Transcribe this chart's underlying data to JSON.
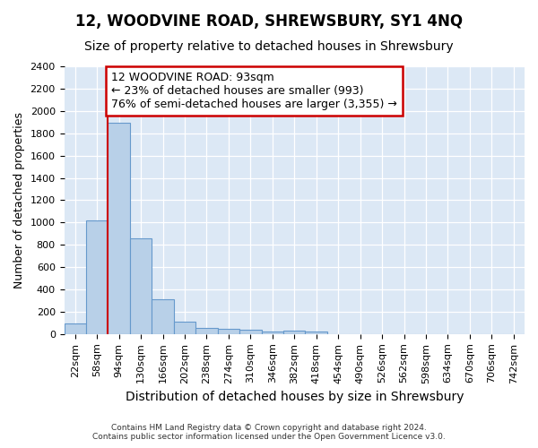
{
  "title": "12, WOODVINE ROAD, SHREWSBURY, SY1 4NQ",
  "subtitle": "Size of property relative to detached houses in Shrewsbury",
  "xlabel": "Distribution of detached houses by size in Shrewsbury",
  "ylabel": "Number of detached properties",
  "footer_line1": "Contains HM Land Registry data © Crown copyright and database right 2024.",
  "footer_line2": "Contains public sector information licensed under the Open Government Licence v3.0.",
  "bar_labels": [
    "22sqm",
    "58sqm",
    "94sqm",
    "130sqm",
    "166sqm",
    "202sqm",
    "238sqm",
    "274sqm",
    "310sqm",
    "346sqm",
    "382sqm",
    "418sqm",
    "454sqm",
    "490sqm",
    "526sqm",
    "562sqm",
    "598sqm",
    "634sqm",
    "670sqm",
    "706sqm",
    "742sqm"
  ],
  "bar_values": [
    93,
    1020,
    1890,
    855,
    315,
    115,
    58,
    48,
    38,
    20,
    30,
    20,
    0,
    0,
    0,
    0,
    0,
    0,
    0,
    0,
    0
  ],
  "bar_color": "#b8d0e8",
  "bar_edge_color": "#6699cc",
  "annotation_text": "12 WOODVINE ROAD: 93sqm\n← 23% of detached houses are smaller (993)\n76% of semi-detached houses are larger (3,355) →",
  "annotation_box_color": "#ffffff",
  "annotation_box_edge_color": "#cc0000",
  "marker_line_color": "#cc0000",
  "marker_bar_index": 2,
  "ylim": [
    0,
    2400
  ],
  "yticks": [
    0,
    200,
    400,
    600,
    800,
    1000,
    1200,
    1400,
    1600,
    1800,
    2000,
    2200,
    2400
  ],
  "fig_bg_color": "#ffffff",
  "plot_bg_color": "#dce8f5",
  "grid_color": "#ffffff",
  "title_fontsize": 12,
  "subtitle_fontsize": 10,
  "xlabel_fontsize": 10,
  "ylabel_fontsize": 9,
  "tick_fontsize": 8,
  "annotation_fontsize": 9
}
